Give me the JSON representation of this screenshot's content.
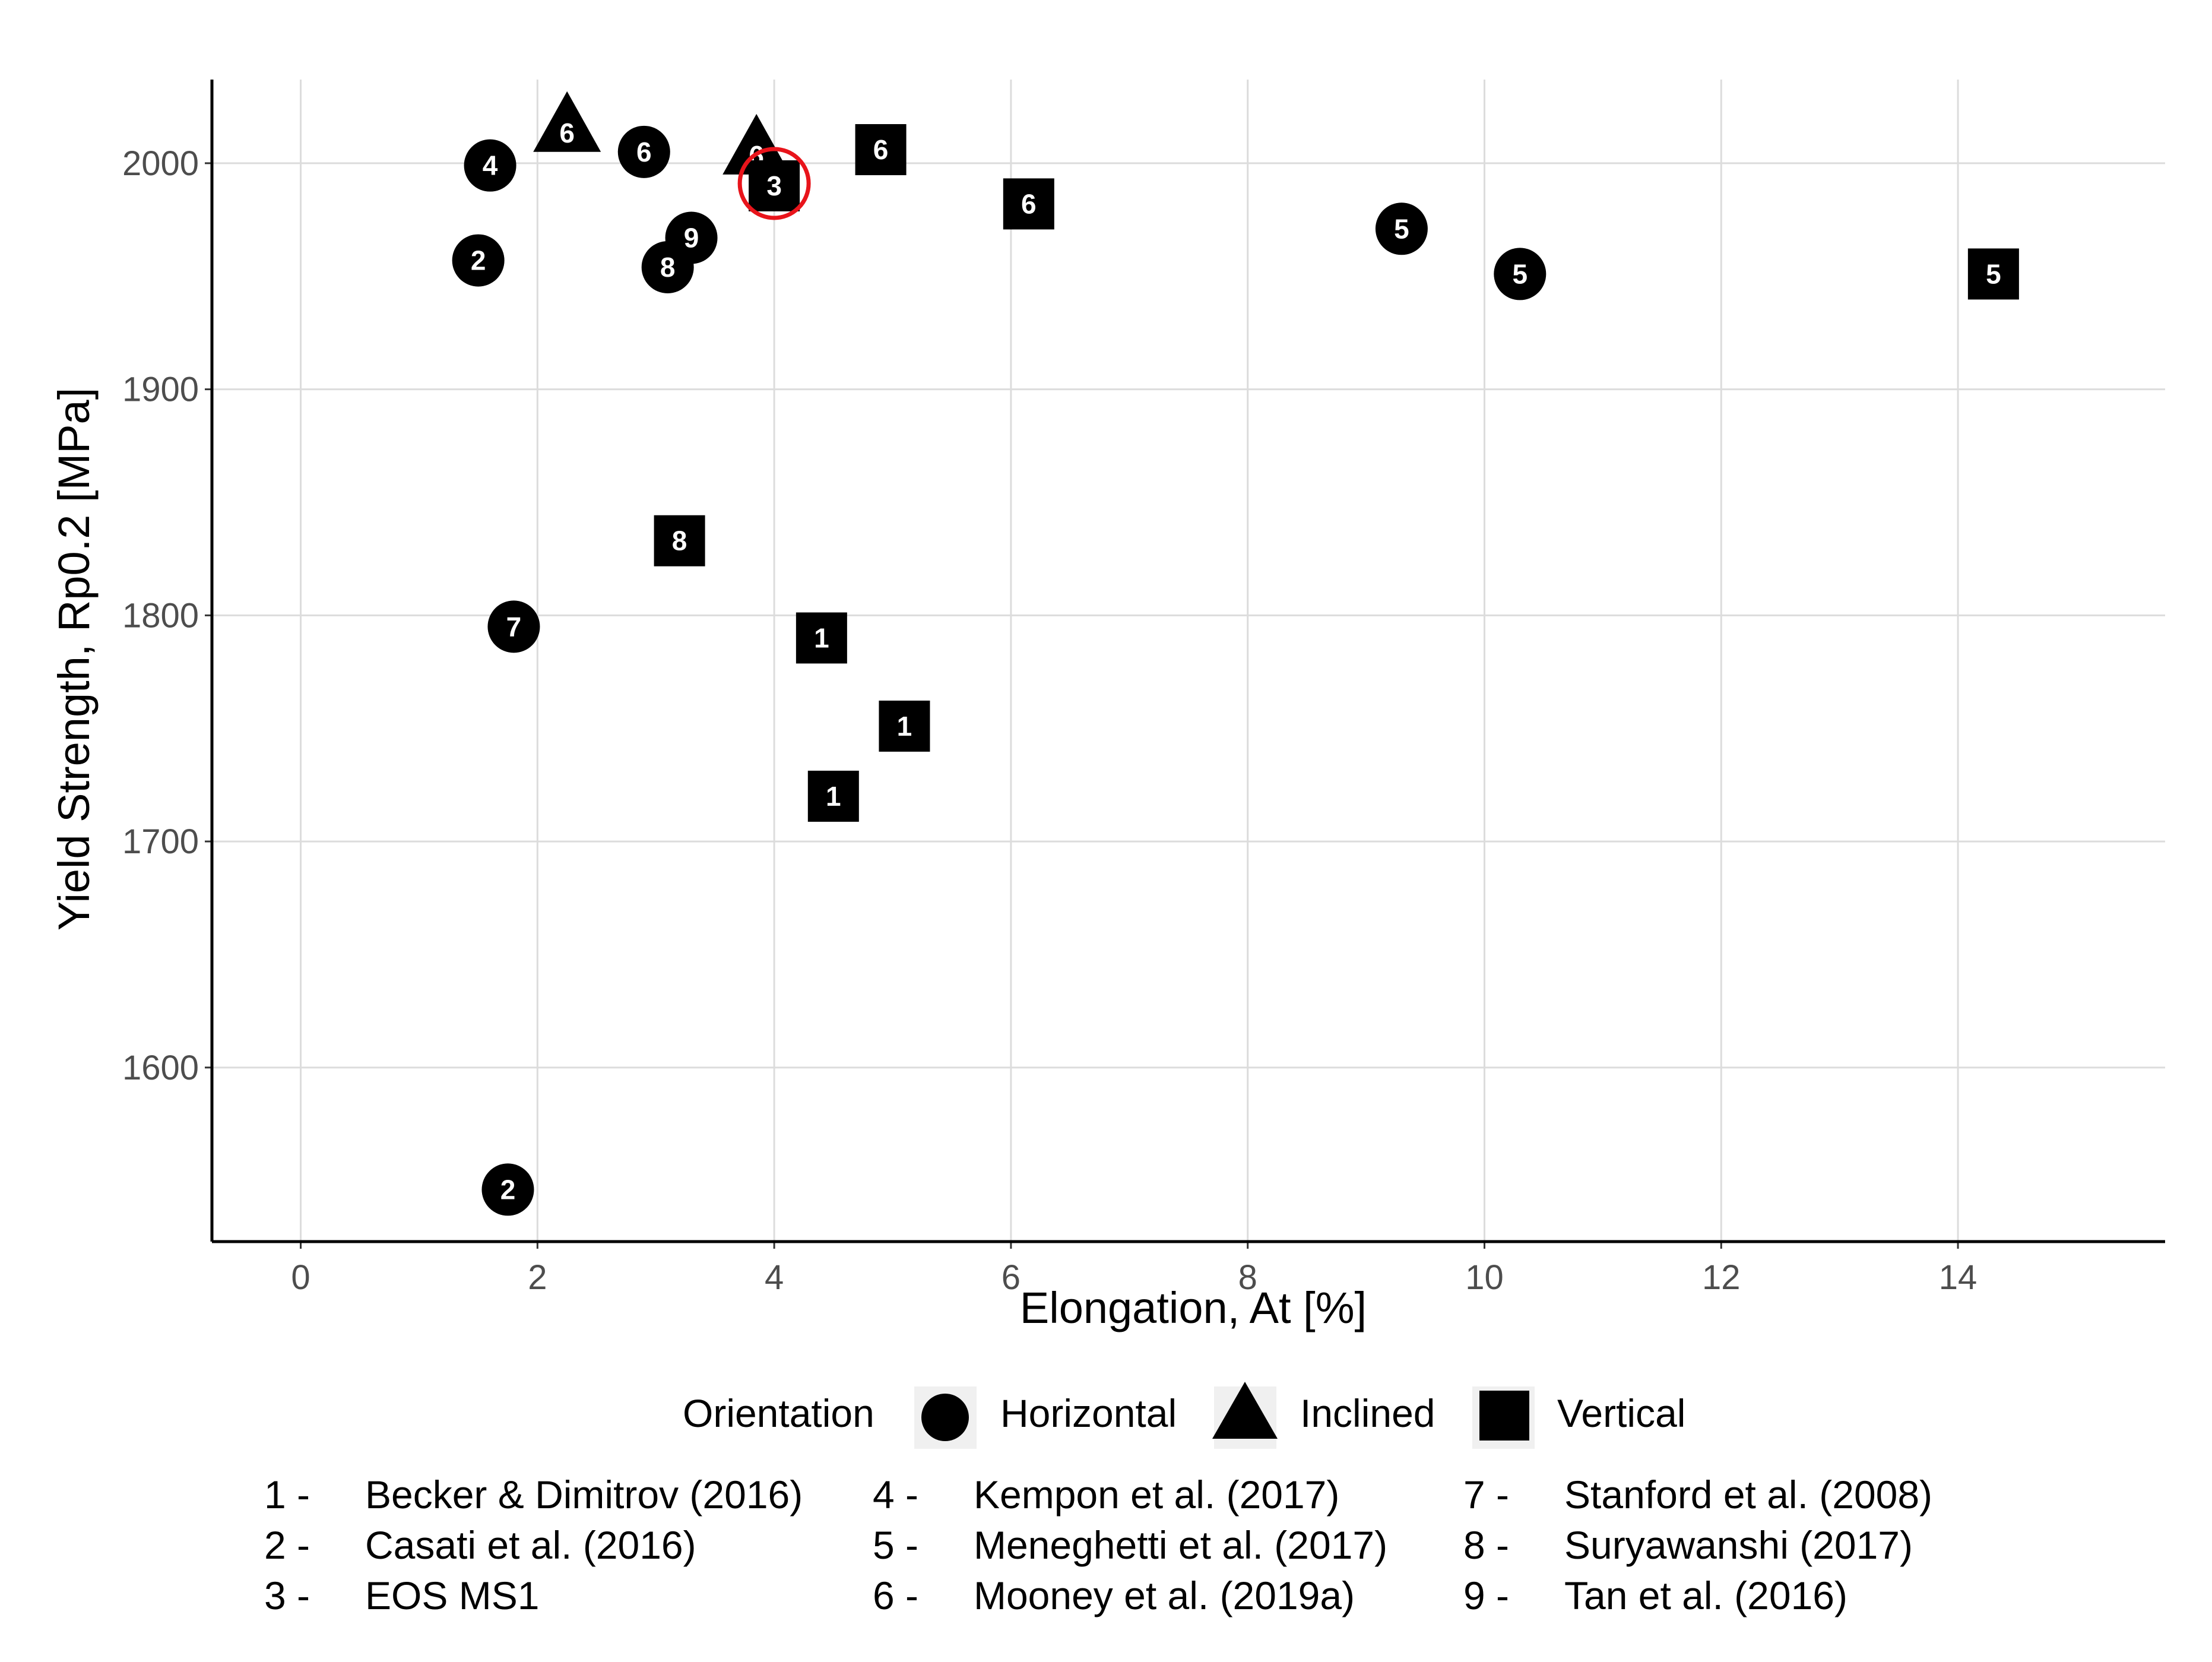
{
  "chart_data": {
    "type": "scatter",
    "xlabel": "Elongation, At [%]",
    "ylabel": "Yield Strength, Rp0.2 [MPa]",
    "xlim": [
      -0.75,
      15.75
    ],
    "ylim": [
      1523,
      2037
    ],
    "xticks": [
      "0",
      "2",
      "4",
      "6",
      "8",
      "10",
      "12",
      "14"
    ],
    "yticks": [
      "1600",
      "1700",
      "1800",
      "1900",
      "2000"
    ],
    "grid": true,
    "legend": {
      "title": "Orientation",
      "position": "bottom",
      "entries": [
        {
          "shape": "circle",
          "label": "Horizontal"
        },
        {
          "shape": "triangle",
          "label": "Inclined"
        },
        {
          "shape": "square",
          "label": "Vertical"
        }
      ]
    },
    "points": [
      {
        "x": 1.6,
        "y": 1999,
        "shape": "circle",
        "label": "4"
      },
      {
        "x": 1.5,
        "y": 1957,
        "shape": "circle",
        "label": "2"
      },
      {
        "x": 2.25,
        "y": 2015,
        "shape": "triangle",
        "label": "6"
      },
      {
        "x": 2.9,
        "y": 2005,
        "shape": "circle",
        "label": "6"
      },
      {
        "x": 3.3,
        "y": 1967,
        "shape": "circle",
        "label": "9"
      },
      {
        "x": 3.1,
        "y": 1954,
        "shape": "circle",
        "label": "8"
      },
      {
        "x": 3.85,
        "y": 2005,
        "shape": "triangle",
        "label": "6"
      },
      {
        "x": 4.0,
        "y": 1990,
        "shape": "square",
        "label": "3",
        "highlight": true
      },
      {
        "x": 4.9,
        "y": 2006,
        "shape": "square",
        "label": "6"
      },
      {
        "x": 6.15,
        "y": 1982,
        "shape": "square",
        "label": "6"
      },
      {
        "x": 9.3,
        "y": 1971,
        "shape": "circle",
        "label": "5"
      },
      {
        "x": 10.3,
        "y": 1951,
        "shape": "circle",
        "label": "5"
      },
      {
        "x": 14.3,
        "y": 1951,
        "shape": "square",
        "label": "5"
      },
      {
        "x": 3.2,
        "y": 1833,
        "shape": "square",
        "label": "8"
      },
      {
        "x": 1.8,
        "y": 1795,
        "shape": "circle",
        "label": "7"
      },
      {
        "x": 4.4,
        "y": 1790,
        "shape": "square",
        "label": "1"
      },
      {
        "x": 5.1,
        "y": 1751,
        "shape": "square",
        "label": "1"
      },
      {
        "x": 4.5,
        "y": 1720,
        "shape": "square",
        "label": "1"
      },
      {
        "x": 1.75,
        "y": 1546,
        "shape": "circle",
        "label": "2"
      }
    ],
    "references": [
      {
        "num": "1 -",
        "name": "Becker & Dimitrov (2016)"
      },
      {
        "num": "2 -",
        "name": "Casati et al. (2016)"
      },
      {
        "num": "3 -",
        "name": "EOS MS1"
      },
      {
        "num": "4 -",
        "name": "Kempon et al. (2017)"
      },
      {
        "num": "5 -",
        "name": "Meneghetti et al. (2017)"
      },
      {
        "num": "6 -",
        "name": "Mooney et al. (2019a)"
      },
      {
        "num": "7 -",
        "name": "Stanford et al. (2008)"
      },
      {
        "num": "8 -",
        "name": "Suryawanshi (2017)"
      },
      {
        "num": "9 -",
        "name": "Tan et al. (2016)"
      }
    ],
    "colors": {
      "marker": "#000000",
      "marker_text": "#ffffff",
      "highlight": "#e8141b",
      "grid": "#dcdcdc",
      "axis": "#000000",
      "legend_key_bg": "#f0f0f0"
    }
  }
}
